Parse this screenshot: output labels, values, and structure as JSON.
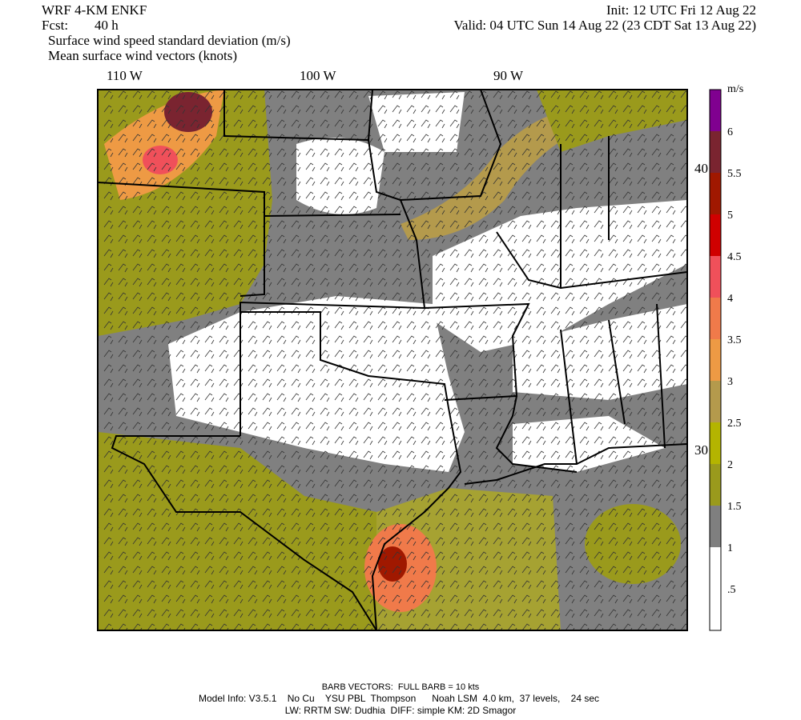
{
  "header": {
    "model": "WRF 4-KM ENKF",
    "init": "Init: 12 UTC Fri 12 Aug 22",
    "fcst_label": "Fcst:",
    "fcst_value": "40 h",
    "valid": "Valid: 04 UTC Sun 14 Aug 22 (23 CDT Sat 13 Aug 22)",
    "field": "Surface wind speed standard deviation (m/s)",
    "vectors": "Mean surface wind vectors (knots)"
  },
  "map": {
    "longitude_labels": [
      "110 W",
      "100 W",
      "90 W"
    ],
    "latitude_labels": [
      "40 N",
      "30 N"
    ]
  },
  "colorbar": {
    "unit": "m/s",
    "labels": [
      ".5",
      "1",
      "1.5",
      "2",
      "2.5",
      "3",
      "3.5",
      "4",
      "4.5",
      "5",
      "5.5",
      "6"
    ],
    "colors": [
      "#ffffff",
      "#ffffff",
      "#7f7f7f",
      "#9a9a1c",
      "#b4b400",
      "#b49a4c",
      "#ee9a44",
      "#f07a4a",
      "#f0505a",
      "#d00000",
      "#a01800",
      "#7a2430",
      "#800090"
    ]
  },
  "footer": {
    "barb": "BARB VECTORS:  FULL BARB = 10 kts",
    "model_info": "Model Info: V3.5.1    No Cu    YSU PBL  Thompson      Noah LSM  4.0 km,  37 levels,    24 sec",
    "physics": "LW: RRTM SW: Dudhia  DIFF: simple KM: 2D Smagor"
  }
}
